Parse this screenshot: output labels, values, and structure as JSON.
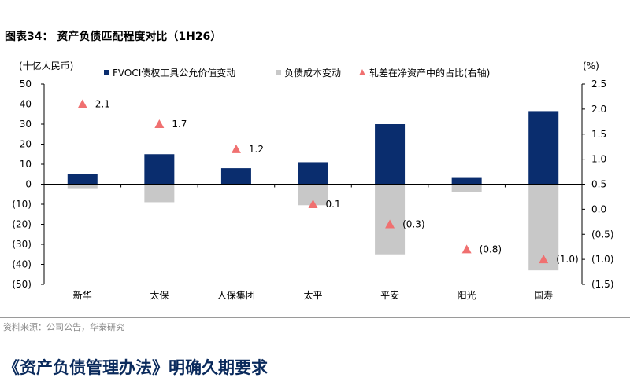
{
  "figure_title": "图表34： 资产负债匹配程度对比（1H26）",
  "source_note": "资料来源：公司公告，华泰研究",
  "section_heading": "《资产负债管理办法》明确久期要求",
  "colors": {
    "bar_fvoci": "#0a2d6e",
    "bar_liability": "#c8c8c8",
    "marker": "#f07070"
  },
  "chart_data": {
    "type": "bar",
    "categories": [
      "新华",
      "太保",
      "人保集团",
      "太平",
      "平安",
      "阳光",
      "国寿"
    ],
    "series": [
      {
        "name": "FVOCI债权工具公允价值变动",
        "type": "bar",
        "axis": "left",
        "values": [
          5,
          15,
          8,
          11,
          30,
          3.5,
          36.5
        ]
      },
      {
        "name": "负债成本变动",
        "type": "bar",
        "axis": "left",
        "values": [
          -2,
          -9,
          0,
          -10.5,
          -35,
          -4,
          -43
        ]
      },
      {
        "name": "轧差在净资产中的占比(右轴)",
        "type": "scatter",
        "axis": "right",
        "values": [
          2.1,
          1.7,
          1.2,
          0.1,
          -0.3,
          -0.8,
          -1.0
        ],
        "labels": [
          "2.1",
          "1.7",
          "1.2",
          "0.1",
          "(0.3)",
          "(0.8)",
          "(1.0)"
        ]
      }
    ],
    "y_left": {
      "label": "(十亿人民币)",
      "ylim": [
        -50,
        50
      ],
      "ticks": [
        "50",
        "40",
        "30",
        "20",
        "10",
        "0",
        "(10)",
        "(20)",
        "(30)",
        "(40)",
        "(50)"
      ]
    },
    "y_right": {
      "label": "(%)",
      "ylim": [
        -1.5,
        2.5
      ],
      "ticks": [
        "2.5",
        "2.0",
        "1.5",
        "1.0",
        "0.5",
        "0.0",
        "(0.5)",
        "(1.0)",
        "(1.5)"
      ]
    },
    "grid": false,
    "legend_position": "top"
  }
}
